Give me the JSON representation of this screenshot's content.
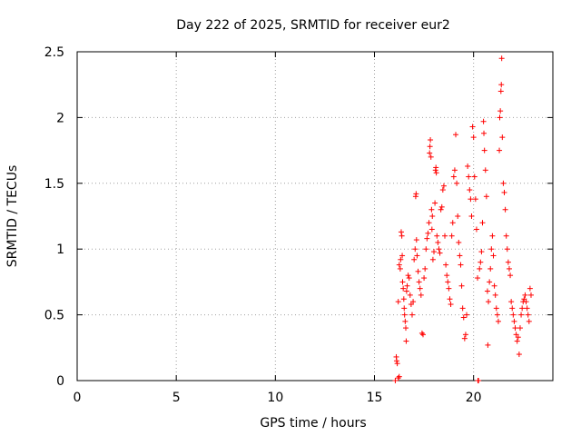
{
  "chart_data": {
    "type": "scatter",
    "title": "Day 222 of 2025, SRMTID for receiver eur2",
    "xlabel": "GPS time / hours",
    "ylabel": "SRMTID / TECUs",
    "xlim": [
      0,
      24
    ],
    "ylim": [
      0,
      2.5
    ],
    "xticks": [
      0,
      5,
      10,
      15,
      20
    ],
    "yticks": [
      0,
      0.5,
      1,
      1.5,
      2,
      2.5
    ],
    "ytick_labels": [
      "0",
      "0.5",
      "1",
      "1.5",
      "2",
      "2.5"
    ],
    "grid": true,
    "marker": "+",
    "color": "#ff0000",
    "series": [
      {
        "name": "SRMTID",
        "points": [
          [
            16.05,
            0.0
          ],
          [
            16.1,
            0.18
          ],
          [
            16.12,
            0.15
          ],
          [
            16.15,
            0.13
          ],
          [
            16.2,
            0.02
          ],
          [
            16.25,
            0.03
          ],
          [
            16.2,
            0.6
          ],
          [
            16.25,
            0.88
          ],
          [
            16.3,
            0.85
          ],
          [
            16.32,
            0.92
          ],
          [
            16.35,
            1.13
          ],
          [
            16.38,
            1.1
          ],
          [
            16.4,
            0.95
          ],
          [
            16.42,
            0.75
          ],
          [
            16.45,
            0.7
          ],
          [
            16.48,
            0.62
          ],
          [
            16.5,
            0.55
          ],
          [
            16.52,
            0.5
          ],
          [
            16.55,
            0.45
          ],
          [
            16.58,
            0.4
          ],
          [
            16.6,
            0.3
          ],
          [
            16.62,
            0.68
          ],
          [
            16.65,
            0.72
          ],
          [
            16.7,
            0.8
          ],
          [
            16.75,
            0.78
          ],
          [
            16.8,
            0.65
          ],
          [
            16.85,
            0.58
          ],
          [
            16.9,
            0.5
          ],
          [
            16.95,
            0.6
          ],
          [
            17.0,
            0.92
          ],
          [
            17.05,
            1.0
          ],
          [
            17.08,
            1.4
          ],
          [
            17.1,
            1.42
          ],
          [
            17.12,
            1.07
          ],
          [
            17.15,
            0.95
          ],
          [
            17.2,
            0.83
          ],
          [
            17.25,
            0.75
          ],
          [
            17.3,
            0.7
          ],
          [
            17.35,
            0.65
          ],
          [
            17.4,
            0.36
          ],
          [
            17.45,
            0.35
          ],
          [
            17.5,
            0.78
          ],
          [
            17.55,
            0.85
          ],
          [
            17.6,
            1.0
          ],
          [
            17.65,
            1.08
          ],
          [
            17.7,
            1.12
          ],
          [
            17.75,
            1.2
          ],
          [
            17.78,
            1.73
          ],
          [
            17.8,
            1.78
          ],
          [
            17.82,
            1.83
          ],
          [
            17.85,
            1.7
          ],
          [
            17.88,
            1.3
          ],
          [
            17.9,
            1.15
          ],
          [
            17.92,
            1.25
          ],
          [
            17.95,
            0.92
          ],
          [
            18.0,
            0.98
          ],
          [
            18.05,
            1.35
          ],
          [
            18.08,
            1.6
          ],
          [
            18.1,
            1.62
          ],
          [
            18.12,
            1.58
          ],
          [
            18.15,
            1.1
          ],
          [
            18.2,
            1.05
          ],
          [
            18.25,
            1.0
          ],
          [
            18.3,
            0.97
          ],
          [
            18.35,
            1.3
          ],
          [
            18.4,
            1.32
          ],
          [
            18.45,
            1.45
          ],
          [
            18.5,
            1.48
          ],
          [
            18.55,
            1.1
          ],
          [
            18.6,
            0.88
          ],
          [
            18.65,
            0.8
          ],
          [
            18.7,
            0.75
          ],
          [
            18.75,
            0.7
          ],
          [
            18.8,
            0.62
          ],
          [
            18.85,
            0.58
          ],
          [
            18.9,
            1.1
          ],
          [
            18.95,
            1.2
          ],
          [
            19.0,
            1.55
          ],
          [
            19.05,
            1.6
          ],
          [
            19.1,
            1.87
          ],
          [
            19.15,
            1.5
          ],
          [
            19.2,
            1.25
          ],
          [
            19.25,
            1.05
          ],
          [
            19.3,
            0.95
          ],
          [
            19.35,
            0.88
          ],
          [
            19.4,
            0.72
          ],
          [
            19.45,
            0.55
          ],
          [
            19.5,
            0.48
          ],
          [
            19.55,
            0.32
          ],
          [
            19.6,
            0.35
          ],
          [
            19.65,
            0.5
          ],
          [
            19.7,
            1.63
          ],
          [
            19.75,
            1.55
          ],
          [
            19.8,
            1.45
          ],
          [
            19.85,
            1.38
          ],
          [
            19.9,
            1.25
          ],
          [
            19.95,
            1.93
          ],
          [
            20.0,
            1.85
          ],
          [
            20.05,
            1.55
          ],
          [
            20.1,
            1.38
          ],
          [
            20.15,
            1.15
          ],
          [
            20.2,
            0.78
          ],
          [
            20.22,
            0.0
          ],
          [
            20.25,
            0.0
          ],
          [
            20.3,
            0.85
          ],
          [
            20.35,
            0.9
          ],
          [
            20.4,
            0.98
          ],
          [
            20.45,
            1.2
          ],
          [
            20.5,
            1.97
          ],
          [
            20.52,
            1.88
          ],
          [
            20.55,
            1.75
          ],
          [
            20.6,
            1.6
          ],
          [
            20.65,
            1.4
          ],
          [
            20.7,
            0.68
          ],
          [
            20.72,
            0.27
          ],
          [
            20.75,
            0.6
          ],
          [
            20.8,
            0.75
          ],
          [
            20.85,
            0.85
          ],
          [
            20.9,
            1.0
          ],
          [
            20.95,
            1.1
          ],
          [
            21.0,
            0.95
          ],
          [
            21.05,
            0.72
          ],
          [
            21.1,
            0.65
          ],
          [
            21.15,
            0.55
          ],
          [
            21.2,
            0.5
          ],
          [
            21.25,
            0.45
          ],
          [
            21.3,
            1.75
          ],
          [
            21.32,
            2.0
          ],
          [
            21.35,
            2.05
          ],
          [
            21.38,
            2.2
          ],
          [
            21.4,
            2.25
          ],
          [
            21.42,
            2.45
          ],
          [
            21.45,
            1.85
          ],
          [
            21.5,
            1.5
          ],
          [
            21.55,
            1.43
          ],
          [
            21.6,
            1.3
          ],
          [
            21.65,
            1.1
          ],
          [
            21.7,
            1.0
          ],
          [
            21.75,
            0.9
          ],
          [
            21.8,
            0.85
          ],
          [
            21.85,
            0.8
          ],
          [
            21.9,
            0.6
          ],
          [
            21.95,
            0.55
          ],
          [
            22.0,
            0.5
          ],
          [
            22.05,
            0.45
          ],
          [
            22.1,
            0.4
          ],
          [
            22.15,
            0.35
          ],
          [
            22.2,
            0.3
          ],
          [
            22.25,
            0.33
          ],
          [
            22.3,
            0.2
          ],
          [
            22.35,
            0.4
          ],
          [
            22.4,
            0.5
          ],
          [
            22.45,
            0.55
          ],
          [
            22.5,
            0.6
          ],
          [
            22.55,
            0.62
          ],
          [
            22.6,
            0.65
          ],
          [
            22.65,
            0.6
          ],
          [
            22.7,
            0.55
          ],
          [
            22.75,
            0.5
          ],
          [
            22.8,
            0.45
          ],
          [
            22.85,
            0.7
          ],
          [
            22.9,
            0.65
          ]
        ]
      }
    ]
  }
}
